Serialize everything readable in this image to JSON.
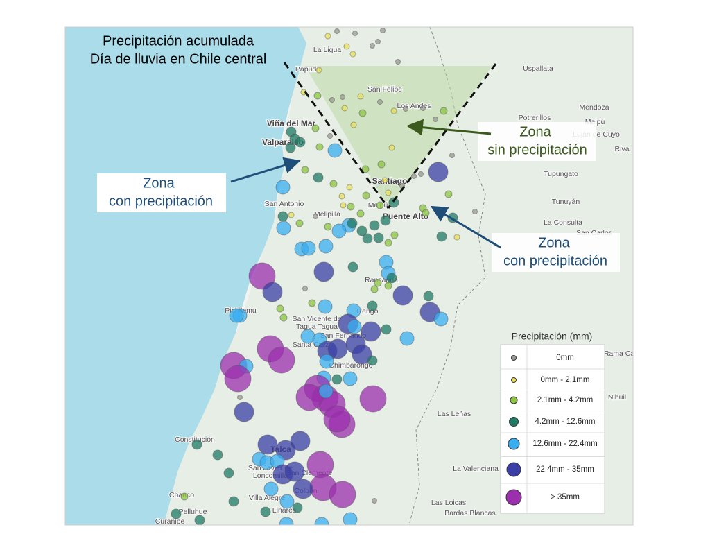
{
  "title_lines": [
    "Precipitación acumulada",
    "Día de lluvia en Chile central"
  ],
  "annotations": {
    "no_rain": [
      "Zona",
      "sin precipitación"
    ],
    "rain_left": [
      "Zona",
      "con precipitación"
    ],
    "rain_right": [
      "Zona",
      "con precipitación"
    ]
  },
  "places": [
    "La Ligua",
    "Papudo",
    "Uspallata",
    "San Felipe",
    "Los Andes",
    "Mendoza",
    "Potrerillos",
    "Maipú",
    "Luján de Cuyo",
    "Riva",
    "Viña del Mar",
    "Valparaíso",
    "Tupungato",
    "Santiago",
    "San Antonio",
    "Melipilla",
    "Maipú",
    "Puente Alto",
    "Tunuyán",
    "La Consulta",
    "San Carlos",
    "Rancagua",
    "Pichilemu",
    "Rengo",
    "San Vicente de",
    "Tagua Tagua",
    "San Fernando",
    "Santa Cruz",
    "Chimbarongo",
    "Rama Ca",
    "Nihuil",
    "Las Leñas",
    "Constitución",
    "Talca",
    "San Javier de",
    "Loncomilla",
    "San Clemente",
    "La Valenciana",
    "Chanco",
    "Villa Alegre",
    "Colbún",
    "Las Loicas",
    "Pelluhue",
    "Linares",
    "Bardas Blancas",
    "Curanipe"
  ],
  "legend": {
    "title": "Precipitación (mm)",
    "items": [
      {
        "label": "0mm",
        "color": "#9a9a92"
      },
      {
        "label": "0mm - 2.1mm",
        "color": "#e9e25a"
      },
      {
        "label": "2.1mm - 4.2mm",
        "color": "#8cc63f"
      },
      {
        "label": "4.2mm - 12.6mm",
        "color": "#1f7a64"
      },
      {
        "label": "12.6mm - 22.4mm",
        "color": "#38aef0"
      },
      {
        "label": "22.4mm - 35mm",
        "color": "#3b3fa6"
      },
      {
        "label": "> 35mm",
        "color": "#9b2fae"
      }
    ]
  }
}
